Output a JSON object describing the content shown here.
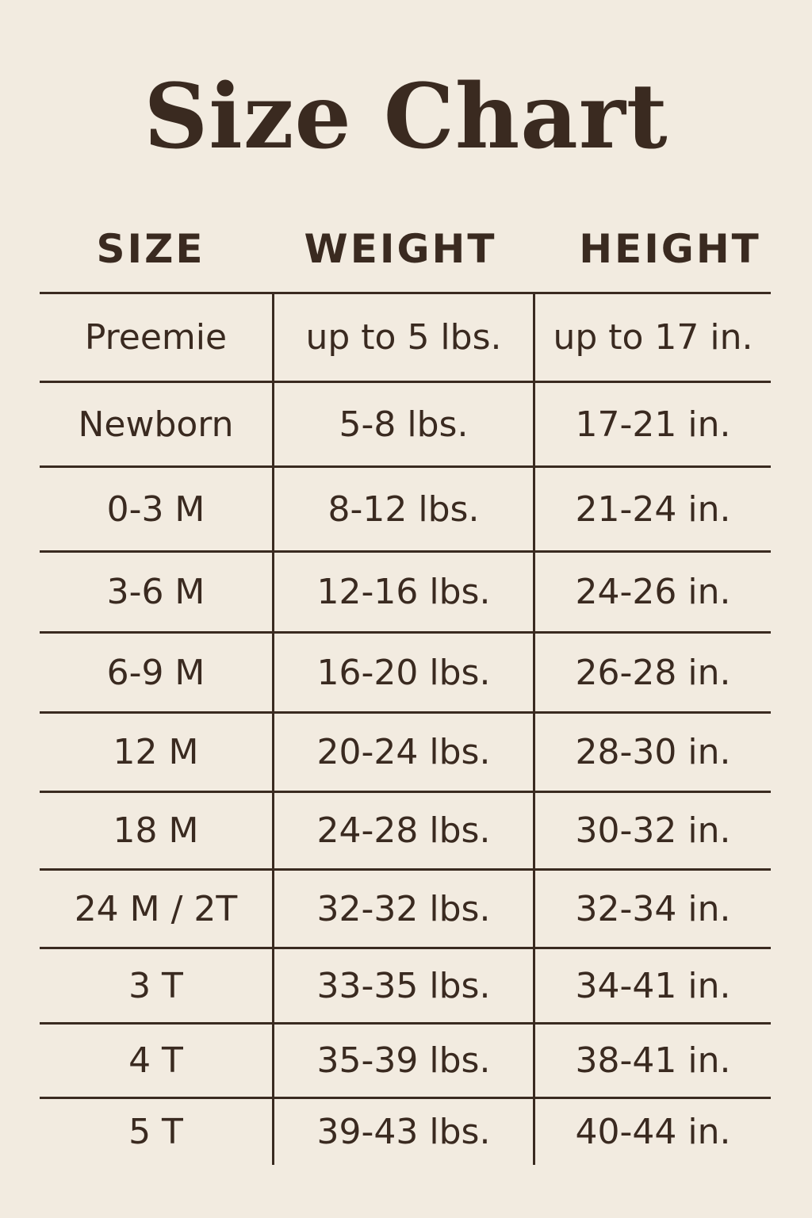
{
  "title": "Size Chart",
  "headers": [
    "SIZE",
    "WEIGHT",
    "HEIGHT"
  ],
  "rows": [
    [
      "Preemie",
      "up to 5 lbs.",
      "up to 17 in."
    ],
    [
      "Newborn",
      "5-8 lbs.",
      "17-21 in."
    ],
    [
      "0-3 M",
      "8-12 lbs.",
      "21-24 in."
    ],
    [
      "3-6 M",
      "12-16 lbs.",
      "24-26 in."
    ],
    [
      "6-9 M",
      "16-20 lbs.",
      "26-28 in."
    ],
    [
      "12 M",
      "20-24 lbs.",
      "28-30 in."
    ],
    [
      "18 M",
      "24-28 lbs.",
      "30-32 in."
    ],
    [
      "24 M / 2T",
      "32-32 lbs.",
      "32-34 in."
    ],
    [
      "3 T",
      "33-35 lbs.",
      "34-41 in."
    ],
    [
      "4 T",
      "35-39 lbs.",
      "38-41 in."
    ],
    [
      "5 T",
      "39-43 lbs.",
      "40-44 in."
    ]
  ],
  "colors": {
    "background": "#f2ebe0",
    "text": "#3a2a20"
  }
}
